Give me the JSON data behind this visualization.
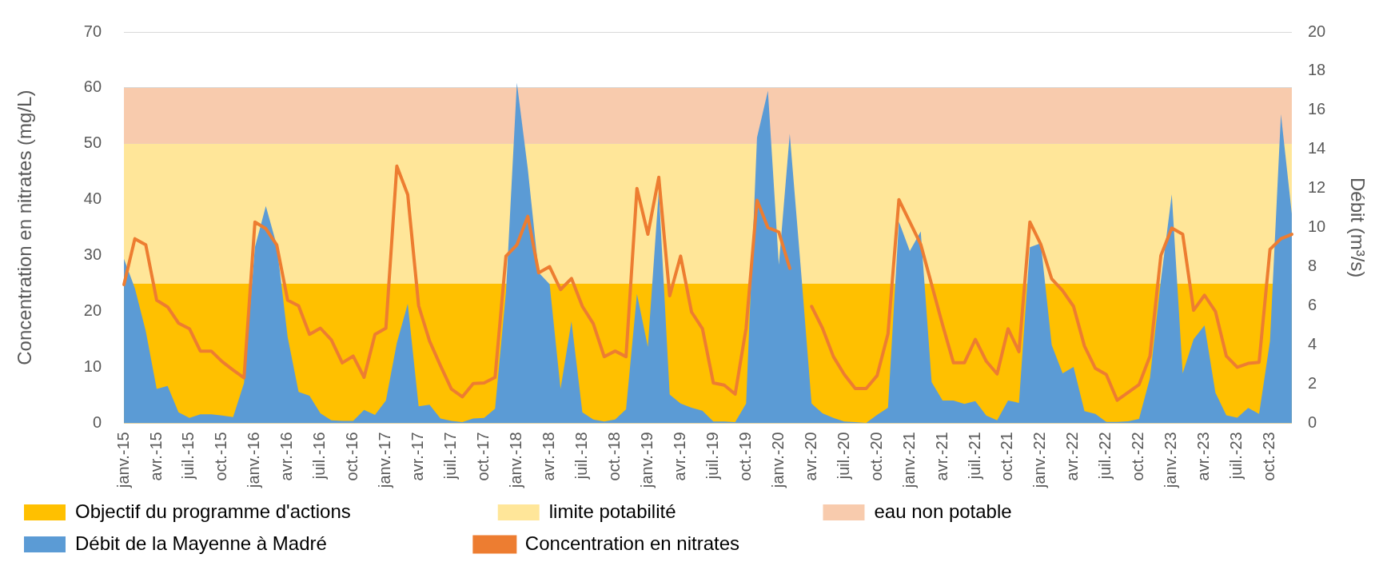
{
  "chart_data": {
    "type": "line",
    "categories": [
      "janv.-15",
      null,
      null,
      "avr.-15",
      null,
      null,
      "juil.-15",
      null,
      null,
      "oct.-15",
      null,
      null,
      "janv.-16",
      null,
      null,
      "avr.-16",
      null,
      null,
      "juil.-16",
      null,
      null,
      "oct.-16",
      null,
      null,
      "janv.-17",
      null,
      null,
      "avr.-17",
      null,
      null,
      "juil.-17",
      null,
      null,
      "oct.-17",
      null,
      null,
      "janv.-18",
      null,
      null,
      "avr.-18",
      null,
      null,
      "juil.-18",
      null,
      null,
      "oct.-18",
      null,
      null,
      "janv.-19",
      null,
      null,
      "avr.-19",
      null,
      null,
      "juil.-19",
      null,
      null,
      "oct.-19",
      null,
      null,
      "janv.-20",
      null,
      null,
      "avr.-20",
      null,
      null,
      "juil.-20",
      null,
      null,
      "oct.-20",
      null,
      null,
      "janv.-21",
      null,
      null,
      "avr.-21",
      null,
      null,
      "juil.-21",
      null,
      null,
      "oct.-21",
      null,
      null,
      "janv.-22",
      null,
      null,
      "avr.-22",
      null,
      null,
      "juil.-22",
      null,
      null,
      "oct.-22",
      null,
      null,
      "janv.-23",
      null,
      null,
      "avr.-23",
      null,
      null,
      "juil.-23",
      null,
      null,
      "oct.-23",
      null,
      null
    ],
    "series": [
      {
        "name": "Débit de la Mayenne à Madré",
        "type": "area",
        "axis": "y2",
        "color": "#5b9bd5",
        "values": [
          8.4,
          6.9,
          4.7,
          1.75,
          1.9,
          0.56,
          0.27,
          0.45,
          0.45,
          0.39,
          0.31,
          2.05,
          9,
          11.1,
          9.1,
          4.4,
          1.6,
          1.4,
          0.5,
          0.15,
          0.12,
          0.12,
          0.68,
          0.42,
          1.16,
          4.1,
          6.1,
          0.86,
          0.94,
          0.24,
          0.12,
          0.05,
          0.24,
          0.27,
          0.74,
          6.7,
          17.4,
          13,
          7.7,
          7.1,
          1.75,
          5.2,
          0.56,
          0.19,
          0.09,
          0.19,
          0.71,
          6.6,
          3.9,
          11.9,
          1.46,
          1,
          0.79,
          0.64,
          0.09,
          0.09,
          0.05,
          1,
          14.6,
          17,
          8.1,
          14.8,
          8,
          1,
          0.5,
          0.27,
          0.09,
          0.05,
          0.01,
          0.42,
          0.79,
          10.3,
          8.8,
          9.8,
          2.1,
          1.16,
          1.16,
          0.98,
          1.13,
          0.39,
          0.15,
          1.16,
          1.04,
          9,
          9.2,
          4,
          2.55,
          2.87,
          0.62,
          0.47,
          0.06,
          0.06,
          0.1,
          0.22,
          2.3,
          7.3,
          11.7,
          2.55,
          4.3,
          5,
          1.56,
          0.4,
          0.28,
          0.78,
          0.47,
          4.2,
          15.8,
          10.7
        ]
      },
      {
        "name": "Concentration en nitrates",
        "type": "line",
        "color": "#ed7d31",
        "values": [
          24.8,
          33,
          31.9,
          22,
          20.8,
          17.9,
          16.9,
          12.9,
          12.9,
          11,
          9.5,
          8.1,
          36,
          34.8,
          31.9,
          22,
          21,
          15.9,
          17,
          14.9,
          10.8,
          12,
          8.2,
          15.9,
          17,
          46,
          40.9,
          21,
          14.7,
          10.3,
          6.1,
          4.7,
          7.1,
          7.2,
          8.2,
          29.9,
          31.9,
          37,
          26.9,
          28,
          23.9,
          25.9,
          20.9,
          17.8,
          11.9,
          12.9,
          11.9,
          42,
          33.8,
          44,
          22.8,
          29.9,
          19.9,
          16.9,
          7.2,
          6.8,
          5.2,
          17,
          39.9,
          35,
          34.2,
          27.7,
          null,
          20.9,
          17,
          11.9,
          8.7,
          6.2,
          6.2,
          8.5,
          16,
          40,
          36,
          32,
          24.8,
          17.6,
          10.8,
          10.8,
          15,
          11.1,
          8.8,
          16.9,
          12.8,
          36,
          32,
          25.8,
          23.7,
          20.9,
          13.8,
          9.8,
          8.7,
          4.1,
          5.5,
          6.9,
          12,
          30,
          34.9,
          33.8,
          20.2,
          22.9,
          20,
          12,
          10,
          10.7,
          10.9,
          31.1,
          33,
          33.8
        ]
      }
    ],
    "bands": [
      {
        "axis": "y",
        "from": 0,
        "to": 25,
        "label": "Objectif du programme d'actions",
        "color": "#ffc000"
      },
      {
        "axis": "y",
        "from": 25,
        "to": 50,
        "label": "limite potabilité",
        "color": "#ffe699"
      },
      {
        "axis": "y",
        "from": 50,
        "to": 60,
        "label": "eau non potable",
        "color": "#f8cbad"
      }
    ],
    "ylabel": "Concentration en nitrates (mg/L)",
    "y2label": "Débit (m³/s)",
    "ylim": [
      0,
      70
    ],
    "yticks": [
      0,
      10,
      20,
      30,
      40,
      50,
      60,
      70
    ],
    "y2lim": [
      0,
      20
    ],
    "y2ticks": [
      0,
      2,
      4,
      6,
      8,
      10,
      12,
      14,
      16,
      18,
      20
    ],
    "grid": "y",
    "legend": "bottom"
  }
}
